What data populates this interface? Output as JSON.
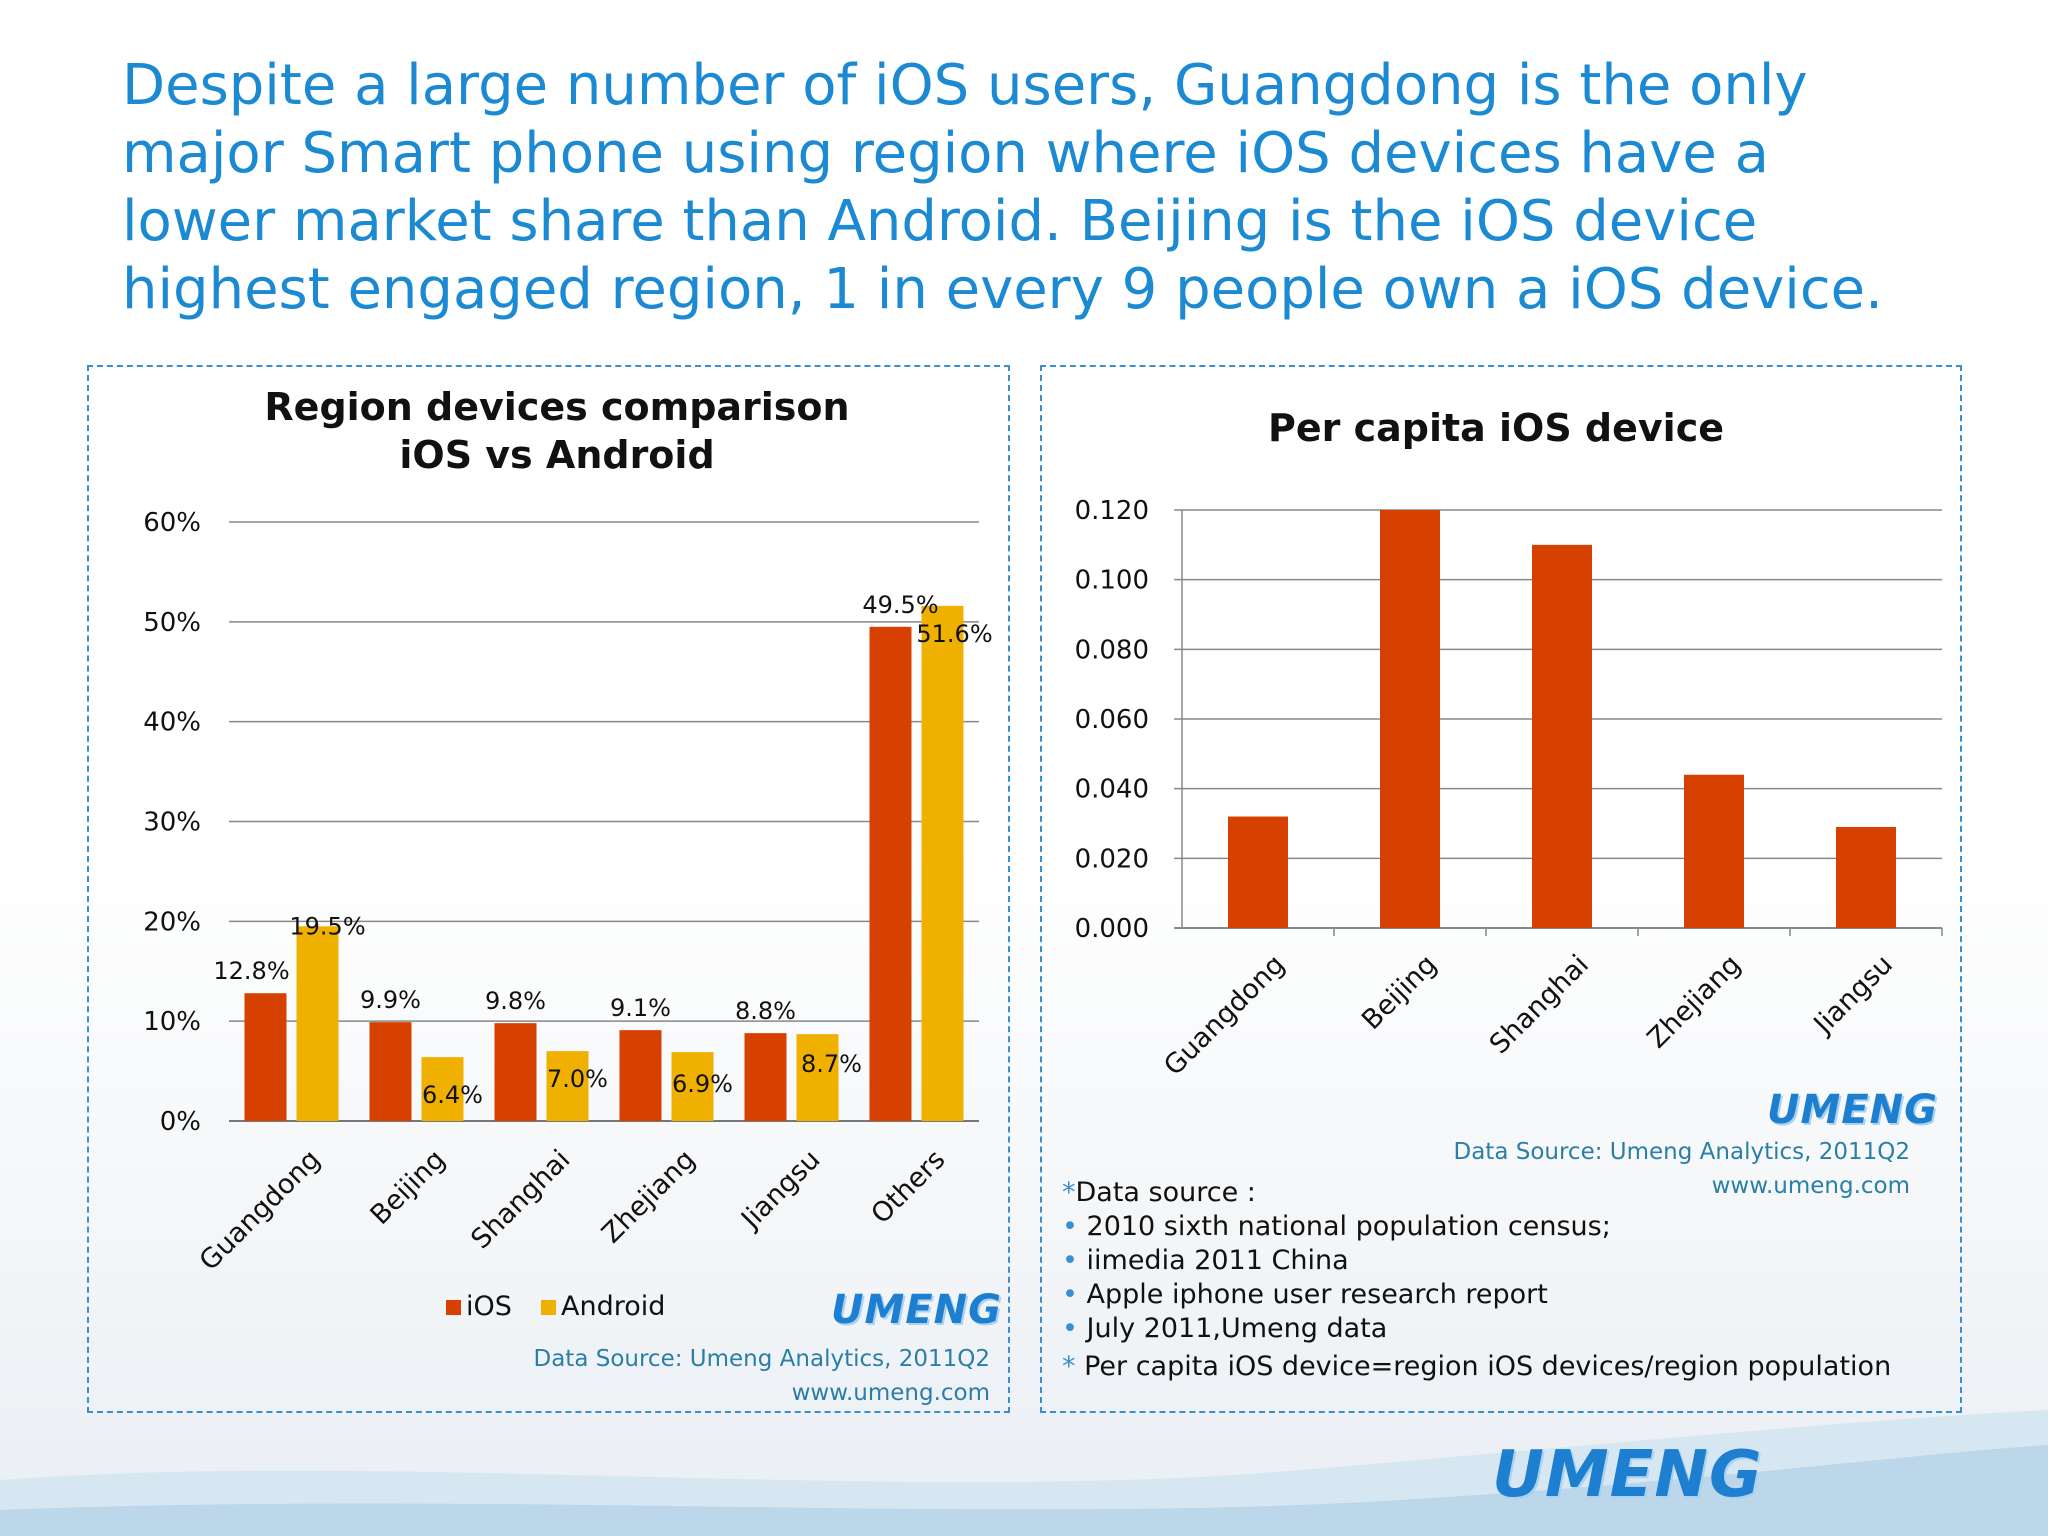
{
  "headline": {
    "lines": [
      "Despite a large number of iOS users, Guangdong is the only",
      "major Smart phone using region where iOS devices have a",
      "lower market share than Android. Beijing is the iOS device",
      "highest engaged region, 1 in every 9 people own a iOS device."
    ]
  },
  "colors": {
    "ios": "#d64000",
    "android": "#f0b000",
    "headline": "#1b8ad3",
    "border": "#3a8fd0"
  },
  "chart_data": [
    {
      "type": "bar",
      "title": "Region devices comparison",
      "subtitle": "iOS vs Android",
      "categories": [
        "Guangdong",
        "Beijing",
        "Shanghai",
        "Zhejiang",
        "Jiangsu",
        "Others"
      ],
      "series": [
        {
          "name": "iOS",
          "values": [
            12.8,
            9.9,
            9.8,
            9.1,
            8.8,
            49.5
          ],
          "labels": [
            "12.8%",
            "9.9%",
            "9.8%",
            "9.1%",
            "8.8%",
            "49.5%"
          ]
        },
        {
          "name": "Android",
          "values": [
            19.5,
            6.4,
            7.0,
            6.9,
            8.7,
            51.6
          ],
          "labels": [
            "19.5%",
            "6.4%",
            "7.0%",
            "6.9%",
            "8.7%",
            "51.6%"
          ]
        }
      ],
      "ylim": [
        0,
        60
      ],
      "yticks": [
        "0%",
        "10%",
        "20%",
        "30%",
        "40%",
        "50%",
        "60%"
      ],
      "legend_position": "bottom",
      "grid": true
    },
    {
      "type": "bar",
      "title": "Per capita iOS device",
      "categories": [
        "Guangdong",
        "Beijing",
        "Shanghai",
        "Zhejiang",
        "Jiangsu"
      ],
      "values": [
        0.032,
        0.12,
        0.11,
        0.044,
        0.029
      ],
      "ylim": [
        0,
        0.12
      ],
      "yticks": [
        "0.000",
        "0.020",
        "0.040",
        "0.060",
        "0.080",
        "0.100",
        "0.120"
      ],
      "grid": true
    }
  ],
  "left_panel": {
    "logo": "UMENG",
    "source_line1": "Data Source: Umeng Analytics, 2011Q2",
    "source_line2": "www.umeng.com"
  },
  "right_panel": {
    "logo": "UMENG",
    "source_line1": "Data Source: Umeng Analytics, 2011Q2",
    "source_line2": "www.umeng.com",
    "notes": {
      "heading": "Data source :",
      "heading_mark": "*",
      "items": [
        "2010 sixth national population census;",
        "iimedia 2011 China",
        "Apple iphone user research report",
        "July 2011,Umeng data"
      ],
      "footnote_mark": "*",
      "footnote": "Per capita iOS device=region iOS devices/region population"
    }
  },
  "footer": {
    "logo": "UMENG"
  }
}
